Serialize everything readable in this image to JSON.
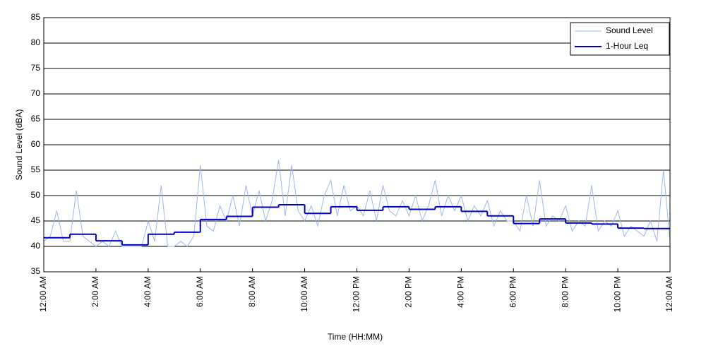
{
  "chart_data": {
    "type": "line",
    "xlabel": "Time (HH:MM)",
    "ylabel": "Sound Level (dBA)",
    "xlim": [
      0,
      24
    ],
    "ylim": [
      35,
      85
    ],
    "yticks": [
      35,
      40,
      45,
      50,
      55,
      60,
      65,
      70,
      75,
      80,
      85
    ],
    "xticks": [
      {
        "value": 0,
        "label": "12:00 AM"
      },
      {
        "value": 2,
        "label": "2:00 AM"
      },
      {
        "value": 4,
        "label": "4:00 AM"
      },
      {
        "value": 6,
        "label": "6:00 AM"
      },
      {
        "value": 8,
        "label": "8:00 AM"
      },
      {
        "value": 10,
        "label": "10:00 AM"
      },
      {
        "value": 12,
        "label": "12:00 PM"
      },
      {
        "value": 14,
        "label": "2:00 PM"
      },
      {
        "value": 16,
        "label": "4:00 PM"
      },
      {
        "value": 18,
        "label": "6:00 PM"
      },
      {
        "value": 20,
        "label": "8:00 PM"
      },
      {
        "value": 22,
        "label": "10:00 PM"
      },
      {
        "value": 24,
        "label": "12:00 AM"
      }
    ],
    "grid": true,
    "legend": "upper right",
    "series": [
      {
        "name": "Sound Level",
        "color": "#9db8f0",
        "width": 1,
        "x": [
          0,
          0.25,
          0.5,
          0.75,
          1,
          1.25,
          1.5,
          1.75,
          2,
          2.25,
          2.5,
          2.75,
          3,
          3.25,
          3.5,
          3.75,
          4,
          4.25,
          4.5,
          4.75,
          5,
          5.25,
          5.5,
          5.75,
          6,
          6.25,
          6.5,
          6.75,
          7,
          7.25,
          7.5,
          7.75,
          8,
          8.25,
          8.5,
          8.75,
          9,
          9.25,
          9.5,
          9.75,
          10,
          10.25,
          10.5,
          10.75,
          11,
          11.25,
          11.5,
          11.75,
          12,
          12.25,
          12.5,
          12.75,
          13,
          13.25,
          13.5,
          13.75,
          14,
          14.25,
          14.5,
          14.75,
          15,
          15.25,
          15.5,
          15.75,
          16,
          16.25,
          16.5,
          16.75,
          17,
          17.25,
          17.5,
          17.75,
          18,
          18.25,
          18.5,
          18.75,
          19,
          19.25,
          19.5,
          19.75,
          20,
          20.25,
          20.5,
          20.75,
          21,
          21.25,
          21.5,
          21.75,
          22,
          22.25,
          22.5,
          22.75,
          23,
          23.25,
          23.5,
          23.75,
          24
        ],
        "values": [
          41,
          42,
          47,
          41,
          41,
          51,
          42,
          41,
          40,
          41,
          40,
          43,
          40,
          40,
          40,
          40,
          45,
          41,
          52,
          40,
          40,
          41,
          40,
          42,
          56,
          44,
          43,
          48,
          45,
          50,
          44,
          52,
          46,
          51,
          45,
          49,
          57,
          46,
          56,
          47,
          45,
          48,
          44,
          50,
          53,
          46,
          52,
          47,
          48,
          46,
          51,
          45,
          52,
          47,
          46,
          49,
          46,
          50,
          45,
          48,
          53,
          46,
          50,
          47,
          50,
          45,
          48,
          46,
          49,
          44,
          47,
          45,
          45,
          43,
          50,
          44,
          53,
          44,
          46,
          45,
          48,
          43,
          45,
          44,
          52,
          43,
          45,
          44,
          47,
          42,
          44,
          43,
          42,
          45,
          41,
          55,
          41
        ]
      },
      {
        "name": "1-Hour Leq",
        "color": "#0000cc",
        "width": 2,
        "step": "post",
        "x": [
          0,
          1,
          2,
          3,
          4,
          5,
          6,
          7,
          8,
          9,
          10,
          11,
          12,
          13,
          14,
          15,
          16,
          17,
          18,
          19,
          20,
          21,
          22,
          23
        ],
        "values": [
          41.7,
          42.4,
          41.1,
          40.3,
          42.4,
          42.8,
          45.3,
          45.9,
          47.7,
          48.2,
          46.5,
          47.8,
          47.1,
          47.8,
          47.3,
          47.8,
          46.9,
          46.0,
          44.5,
          45.4,
          44.6,
          44.4,
          43.6,
          43.5
        ]
      }
    ]
  }
}
